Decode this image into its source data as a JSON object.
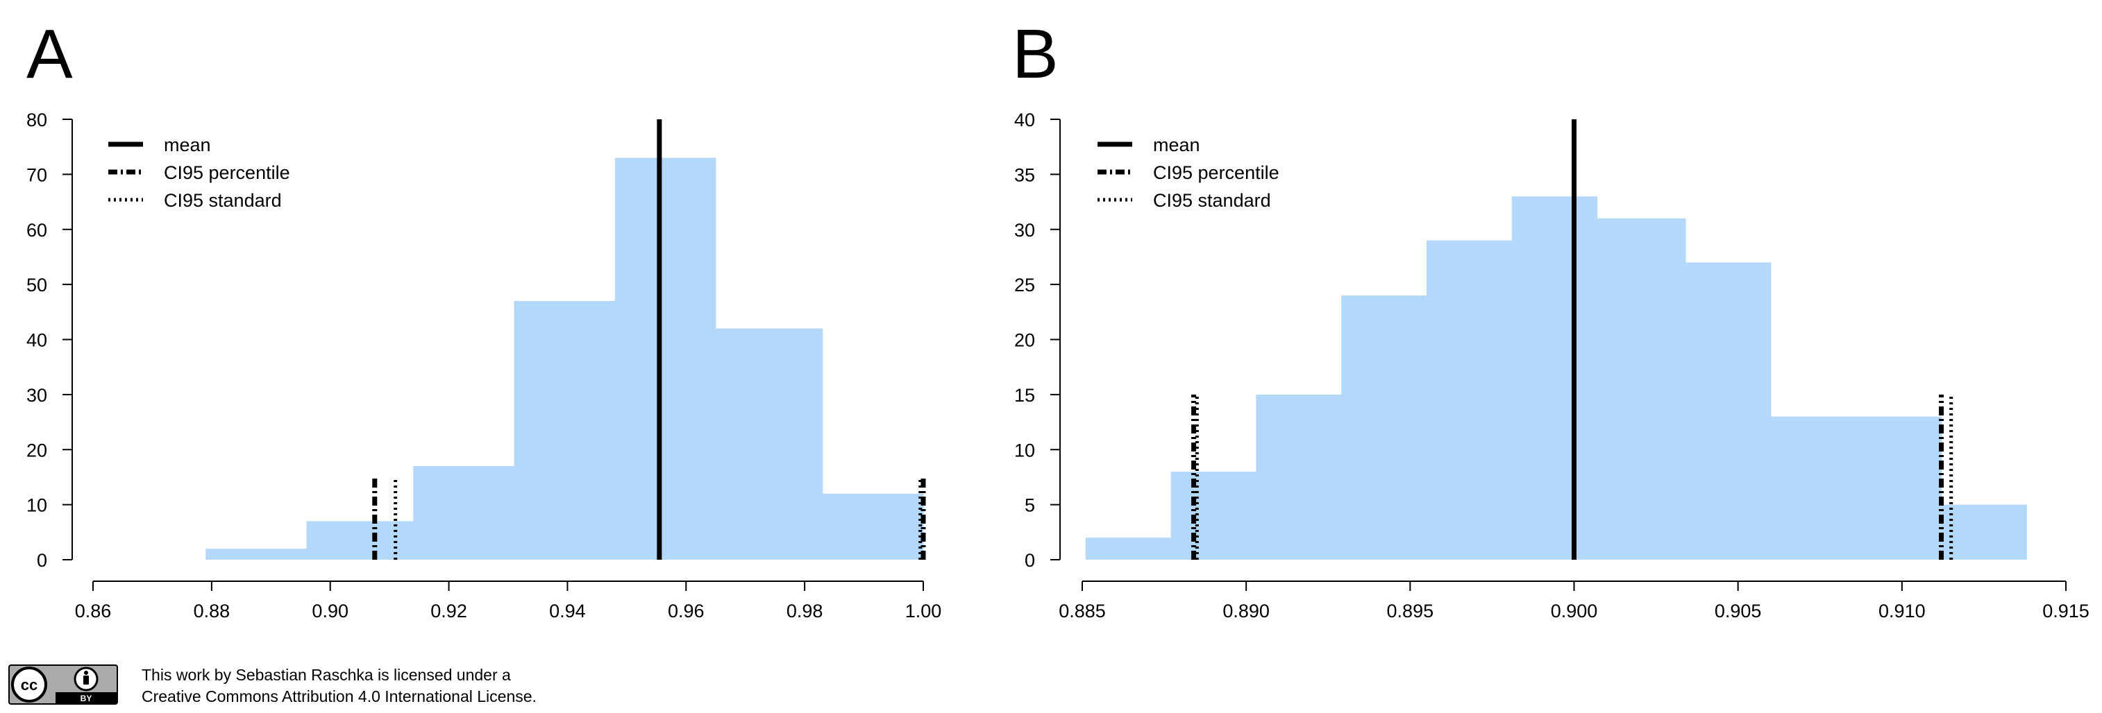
{
  "chart_data": [
    {
      "type": "bar",
      "panel_label": "A",
      "histogram": {
        "bins": [
          {
            "x0": 0.879,
            "x1": 0.896,
            "count": 2
          },
          {
            "x0": 0.896,
            "x1": 0.914,
            "count": 7
          },
          {
            "x0": 0.914,
            "x1": 0.931,
            "count": 17
          },
          {
            "x0": 0.931,
            "x1": 0.948,
            "count": 47
          },
          {
            "x0": 0.948,
            "x1": 0.965,
            "count": 73
          },
          {
            "x0": 0.965,
            "x1": 0.983,
            "count": 42
          },
          {
            "x0": 0.983,
            "x1": 1.0,
            "count": 12
          }
        ]
      },
      "mean": 0.9555,
      "ci95_percentile": [
        0.9075,
        1.0
      ],
      "ci95_standard": [
        0.911,
        0.9995
      ],
      "xlim": [
        0.86,
        1.0
      ],
      "ylim": [
        0,
        80
      ],
      "xticks": [
        "0.86",
        "0.88",
        "0.90",
        "0.92",
        "0.94",
        "0.96",
        "0.98",
        "1.00"
      ],
      "yticks": [
        "0",
        "10",
        "20",
        "30",
        "40",
        "50",
        "60",
        "70",
        "80"
      ],
      "vline_top": {
        "mean": 80,
        "ci": 15
      },
      "legend": {
        "placement": "top-left",
        "entries": [
          {
            "label": "mean",
            "style": "solid"
          },
          {
            "label": "CI95 percentile",
            "style": "dashdot"
          },
          {
            "label": "CI95 standard",
            "style": "dotted"
          }
        ]
      },
      "colors": {
        "bars": "#b3d8fa",
        "lines": "#000000"
      },
      "xlabel": "",
      "ylabel": "",
      "grid": false
    },
    {
      "type": "bar",
      "panel_label": "B",
      "histogram": {
        "bins": [
          {
            "x0": 0.8851,
            "x1": 0.8877,
            "count": 2
          },
          {
            "x0": 0.8877,
            "x1": 0.8903,
            "count": 8
          },
          {
            "x0": 0.8903,
            "x1": 0.8929,
            "count": 15
          },
          {
            "x0": 0.8929,
            "x1": 0.8955,
            "count": 24
          },
          {
            "x0": 0.8955,
            "x1": 0.8981,
            "count": 29
          },
          {
            "x0": 0.8981,
            "x1": 0.9007,
            "count": 33
          },
          {
            "x0": 0.9007,
            "x1": 0.9034,
            "count": 31
          },
          {
            "x0": 0.9034,
            "x1": 0.906,
            "count": 27
          },
          {
            "x0": 0.906,
            "x1": 0.9112,
            "count": 13
          },
          {
            "x0": 0.9112,
            "x1": 0.9138,
            "count": 5
          }
        ]
      },
      "mean": 0.9,
      "ci95_percentile": [
        0.8884,
        0.9112
      ],
      "ci95_standard": [
        0.8885,
        0.9115
      ],
      "xlim": [
        0.885,
        0.915
      ],
      "ylim": [
        0,
        40
      ],
      "xticks": [
        "0.885",
        "0.890",
        "0.895",
        "0.900",
        "0.905",
        "0.910",
        "0.915"
      ],
      "yticks": [
        "0",
        "5",
        "10",
        "15",
        "20",
        "25",
        "30",
        "35",
        "40"
      ],
      "vline_top": {
        "mean": 40,
        "ci": 15
      },
      "legend": {
        "placement": "top-left",
        "entries": [
          {
            "label": "mean",
            "style": "solid"
          },
          {
            "label": "CI95 percentile",
            "style": "dashdot"
          },
          {
            "label": "CI95 standard",
            "style": "dotted"
          }
        ]
      },
      "colors": {
        "bars": "#b3d8fa",
        "lines": "#000000"
      },
      "xlabel": "",
      "ylabel": "",
      "grid": false
    }
  ],
  "license": {
    "badge_icon": "cc-by-icon",
    "badge_cc": "cc",
    "badge_by": "BY",
    "line1": "This work by Sebastian Raschka is licensed under a",
    "line2": "Creative Commons Attribution 4.0 International License."
  }
}
